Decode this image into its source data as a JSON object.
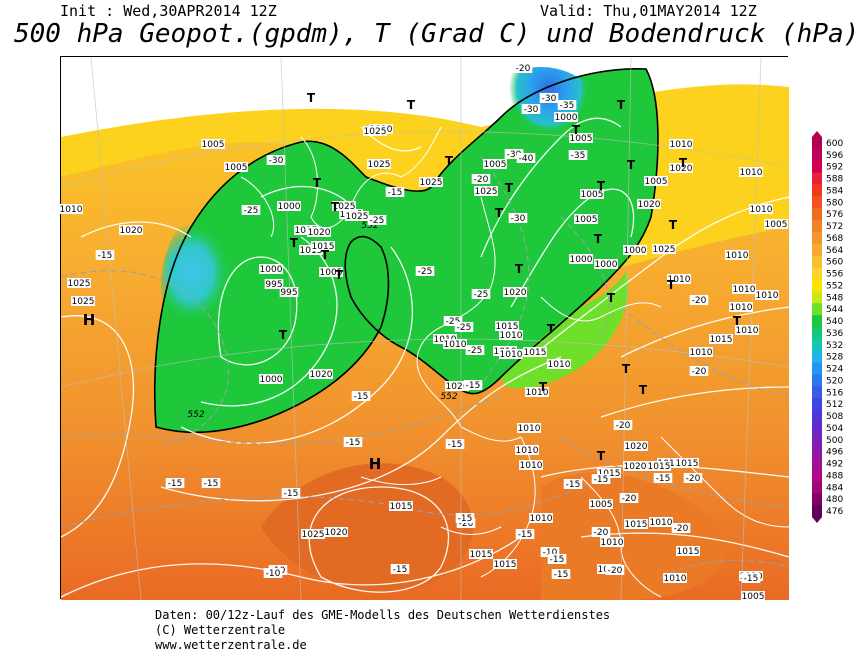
{
  "header": {
    "init_text": "Init : Wed,30APR2014 12Z",
    "valid_text": "Valid: Thu,01MAY2014 12Z",
    "title": "500 hPa Geopot.(gpdm), T (Grad C) und Bodendruck (hPa)"
  },
  "footer": {
    "line1": "Daten: 00/12z-Lauf des GME-Modells des Deutschen Wetterdienstes",
    "line2": "(C) Wetterzentrale",
    "line3": "www.wetterzentrale.de"
  },
  "colorbar": {
    "labels": [
      "600",
      "596",
      "592",
      "588",
      "584",
      "580",
      "576",
      "572",
      "568",
      "564",
      "560",
      "556",
      "552",
      "548",
      "544",
      "540",
      "536",
      "532",
      "528",
      "524",
      "520",
      "516",
      "512",
      "508",
      "504",
      "500",
      "496",
      "492",
      "488",
      "484",
      "480",
      "476"
    ],
    "colors": [
      "#b0004f",
      "#c0005a",
      "#d4004f",
      "#e8203a",
      "#ee3a1e",
      "#f25520",
      "#f06c22",
      "#f0822a",
      "#f4962e",
      "#f8aa32",
      "#fabe2e",
      "#fcd42a",
      "#fce600",
      "#c8e81a",
      "#6ee02a",
      "#1ec83a",
      "#18c878",
      "#14c8b4",
      "#20b4e8",
      "#2096f0",
      "#2878f0",
      "#3c5ae8",
      "#3c46e0",
      "#5036d8",
      "#6428c8",
      "#7820b8",
      "#8c18a8",
      "#a01098",
      "#b00888",
      "#a00878",
      "#800068",
      "#600058"
    ]
  },
  "map": {
    "pressure_labels": [
      "1025",
      "1020",
      "1020",
      "1025",
      "1025",
      "1025",
      "1015",
      "1010",
      "1010",
      "1015",
      "1020",
      "1005",
      "1010",
      "1005",
      "1005",
      "1000",
      "995",
      "1000",
      "1020",
      "1015",
      "1025",
      "1025",
      "1025",
      "1020",
      "1005",
      "995",
      "1000",
      "1005",
      "1005",
      "1000",
      "1000",
      "1005",
      "1005",
      "1010",
      "1020",
      "1020",
      "1025",
      "1010",
      "1010",
      "1015",
      "1010",
      "1010",
      "1010",
      "1005",
      "1010",
      "1010",
      "1020",
      "1020",
      "1015",
      "1010",
      "1010",
      "1010",
      "1010",
      "1005",
      "1015",
      "1010",
      "1015",
      "1015",
      "1015",
      "1015",
      "1010",
      "1010",
      "1015",
      "1010",
      "1010",
      "1015",
      "1010",
      "1010",
      "1010",
      "1010",
      "1010",
      "1000",
      "552",
      "552",
      "552",
      "1010",
      "1015",
      "1015",
      "1020",
      "1020",
      "1005",
      "1015",
      "1025",
      "1025",
      "1025",
      "1010",
      "1000"
    ],
    "temp_labels": [
      "-15",
      "-25",
      "-30",
      "-25",
      "-15",
      "-20",
      "-30",
      "-20",
      "-35",
      "-30",
      "-40",
      "-35",
      "-30",
      "-30",
      "-25",
      "-25",
      "-25",
      "-25",
      "-20",
      "-25",
      "-20",
      "-15",
      "-15",
      "-15",
      "-15",
      "-15",
      "-15",
      "-15",
      "-20",
      "-20",
      "-20",
      "-15",
      "-10",
      "-10",
      "-15",
      "-20",
      "-15",
      "-15",
      "-10",
      "-15",
      "-20",
      "-20",
      "-15",
      "-15",
      "-15",
      "-20",
      "-15"
    ],
    "symbols": [
      "H",
      "H",
      "T",
      "T",
      "T",
      "T",
      "T",
      "T",
      "T",
      "T",
      "T",
      "T",
      "T",
      "T",
      "T",
      "T",
      "T",
      "T",
      "T",
      "T",
      "T",
      "T",
      "T",
      "T",
      "T",
      "T",
      "T",
      "T",
      "T"
    ]
  }
}
